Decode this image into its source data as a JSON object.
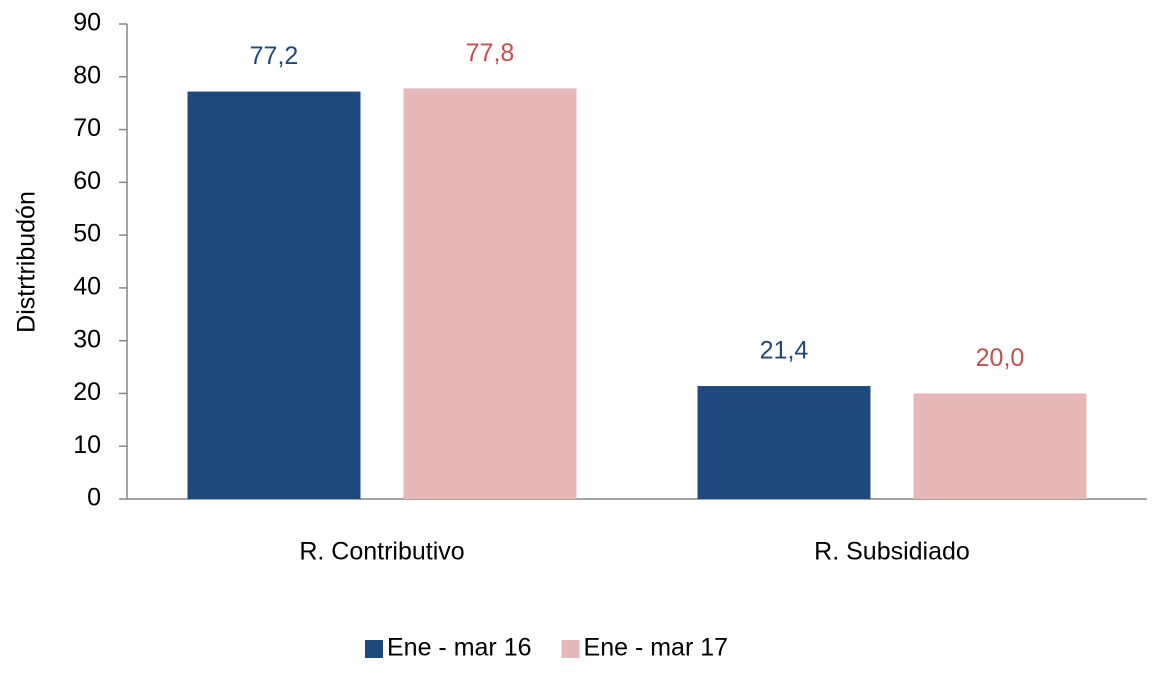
{
  "chart_data": {
    "type": "bar",
    "y_label": "Distrtribudón",
    "categories": [
      "R. Contributivo",
      "R. Subsidiado"
    ],
    "series": [
      {
        "name": "Ene - mar 16",
        "color": "#1f497d",
        "label_color": "#1f497d",
        "values": [
          77.2,
          21.4
        ],
        "value_labels": [
          "77,2",
          "21,4"
        ]
      },
      {
        "name": "Ene - mar 17",
        "color": "#e6b9b8",
        "label_color": "#c0504d",
        "values": [
          77.8,
          20.0
        ],
        "value_labels": [
          "77,8",
          "20,0"
        ]
      }
    ],
    "ylim": [
      0,
      90
    ],
    "yticks": [
      0,
      10,
      20,
      30,
      40,
      50,
      60,
      70,
      80,
      90
    ],
    "grid": false,
    "legend": "bottom"
  }
}
